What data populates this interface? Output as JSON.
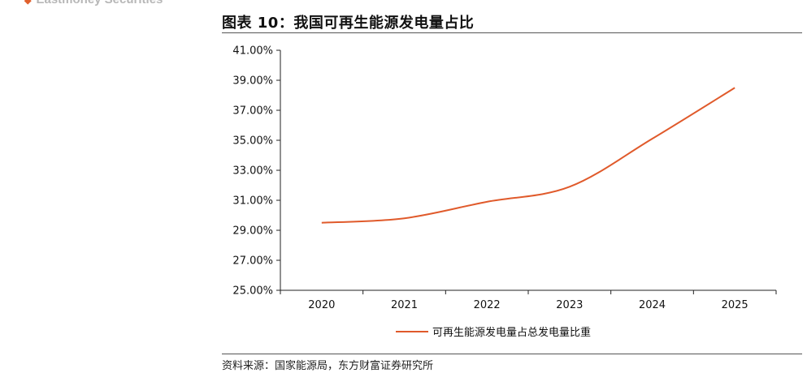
{
  "brand": {
    "name": "Eastmoney Securities",
    "mark": "◆"
  },
  "title": "图表 10：我国可再生能源发电量占比",
  "source": "资料来源：国家能源局，东方财富证券研究所",
  "colors": {
    "series": "#e05a2b",
    "axis": "#222222",
    "brand": "#b7b7b7"
  },
  "chart_data": {
    "type": "line",
    "title": "",
    "xlabel": "",
    "ylabel": "",
    "categories": [
      "2020",
      "2021",
      "2022",
      "2023",
      "2024",
      "2025"
    ],
    "y_tick_labels": [
      "25.00%",
      "27.00%",
      "29.00%",
      "31.00%",
      "33.00%",
      "35.00%",
      "37.00%",
      "39.00%",
      "41.00%"
    ],
    "ylim": [
      25,
      41
    ],
    "y_ticks": [
      25,
      27,
      29,
      31,
      33,
      35,
      37,
      39,
      41
    ],
    "grid": false,
    "legend_position": "bottom-center",
    "series": [
      {
        "name": "可再生能源发电量占总发电量比重",
        "values": [
          29.5,
          29.8,
          30.9,
          31.9,
          35.1,
          38.5
        ],
        "color": "#e05a2b"
      }
    ]
  }
}
